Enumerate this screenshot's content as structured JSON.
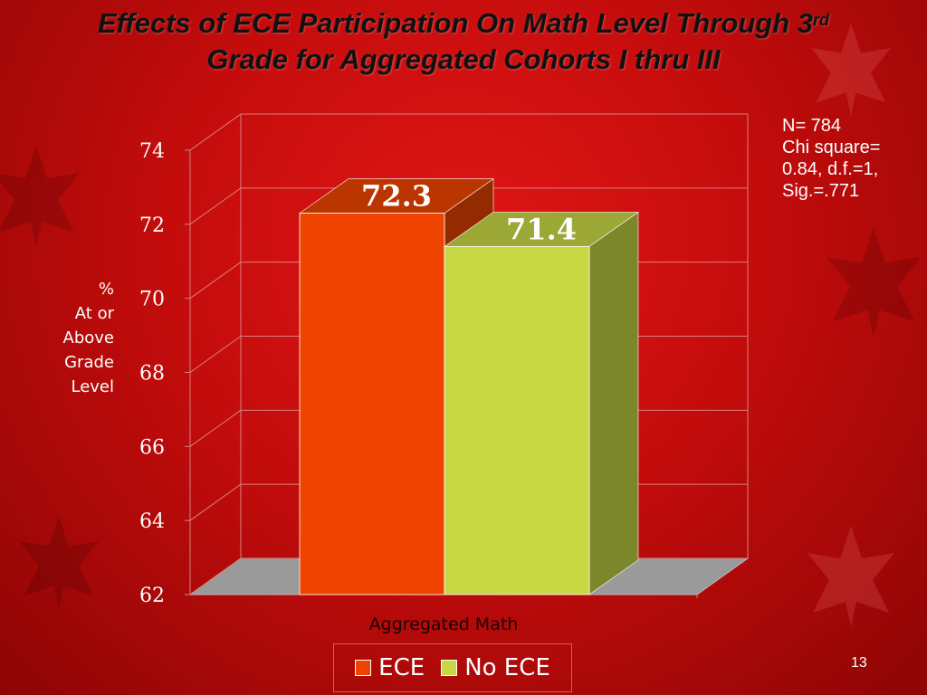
{
  "slide": {
    "title_line1_main": "Effects of ECE Participation On Math Level Through 3",
    "title_line1_sup": "rd",
    "title_line2": "Grade for Aggregated Cohorts I thru III",
    "stats": [
      "N= 784",
      "Chi square=",
      "0.84, d.f.=1,",
      "Sig.=.771"
    ],
    "ylabel_lines": [
      "%",
      "At or",
      "Above",
      "Grade",
      "Level"
    ],
    "page_number": "13"
  },
  "chart_data": {
    "type": "bar",
    "categories": [
      "Aggregated Math"
    ],
    "xlabel": "Aggregated Math",
    "ylabel": "% At or Above Grade Level",
    "ylim": [
      62,
      74
    ],
    "yticks": [
      62,
      64,
      66,
      68,
      70,
      72,
      74
    ],
    "series": [
      {
        "name": "ECE",
        "values": [
          72.3
        ],
        "color": "#ee4400",
        "label": "72.3"
      },
      {
        "name": "No ECE",
        "values": [
          71.4
        ],
        "color": "#c8d845",
        "label": "71.4"
      }
    ],
    "grid": true,
    "legend_position": "bottom"
  }
}
